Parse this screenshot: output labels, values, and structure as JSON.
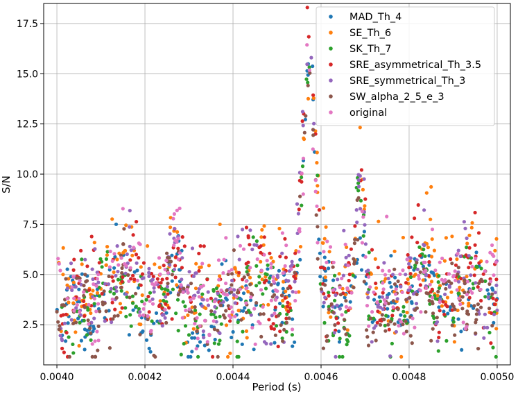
{
  "chart_data": {
    "type": "scatter",
    "title": "",
    "xlabel": "Period (s)",
    "ylabel": "S/N",
    "xlim": [
      0.00397,
      0.00503
    ],
    "ylim": [
      0.5,
      18.5
    ],
    "grid": true,
    "legend_position": "top-right",
    "x_ticks": [
      {
        "value": 0.004,
        "label": "0.0040"
      },
      {
        "value": 0.0042,
        "label": "0.0042"
      },
      {
        "value": 0.0044,
        "label": "0.0044"
      },
      {
        "value": 0.0046,
        "label": "0.0046"
      },
      {
        "value": 0.0048,
        "label": "0.0048"
      },
      {
        "value": 0.005,
        "label": "0.0050"
      }
    ],
    "y_ticks": [
      {
        "value": 2.5,
        "label": "2.5"
      },
      {
        "value": 5.0,
        "label": "5.0"
      },
      {
        "value": 7.5,
        "label": "7.5"
      },
      {
        "value": 10.0,
        "label": "10.0"
      },
      {
        "value": 12.5,
        "label": "12.5"
      },
      {
        "value": 15.0,
        "label": "15.0"
      },
      {
        "value": 17.5,
        "label": "17.5"
      }
    ],
    "series": [
      {
        "name": "MAD_Th_4",
        "color": "#1f77b4",
        "seed": 11,
        "level": 3.0,
        "spread": 0.9,
        "peak": 16.9
      },
      {
        "name": "SE_Th_6",
        "color": "#ff7f0e",
        "seed": 23,
        "level": 4.2,
        "spread": 1.2,
        "peak": 16.6
      },
      {
        "name": "SK_Th_7",
        "color": "#2ca02c",
        "seed": 37,
        "level": 3.0,
        "spread": 0.9,
        "peak": 15.8
      },
      {
        "name": "SRE_asymmetrical_Th_3.5",
        "color": "#d62728",
        "seed": 41,
        "level": 3.9,
        "spread": 1.1,
        "peak": 18.2
      },
      {
        "name": "SRE_symmetrical_Th_3",
        "color": "#9467bd",
        "seed": 53,
        "level": 3.8,
        "spread": 1.0,
        "peak": 16.7
      },
      {
        "name": "SW_alpha_2_5_e_3",
        "color": "#8c564b",
        "seed": 67,
        "level": 2.8,
        "spread": 0.8,
        "peak": 16.5
      },
      {
        "name": "original",
        "color": "#e377c2",
        "seed": 79,
        "level": 3.8,
        "spread": 1.0,
        "peak": 16.4
      }
    ],
    "features": [
      {
        "x": 0.00415,
        "height": 1.8,
        "width": 3e-05
      },
      {
        "x": 0.004265,
        "height": 2.4,
        "width": 1.2e-05
      },
      {
        "x": 0.00445,
        "height": 1.2,
        "width": 3e-05
      },
      {
        "x": 0.004573,
        "height": 11.0,
        "width": 1.4e-05
      },
      {
        "x": 0.004688,
        "height": 5.0,
        "width": 1e-05
      },
      {
        "x": 0.00483,
        "height": 2.0,
        "width": 2e-05
      },
      {
        "x": 0.00494,
        "height": 1.3,
        "width": 3e-05
      }
    ],
    "points_per_series": 260
  }
}
